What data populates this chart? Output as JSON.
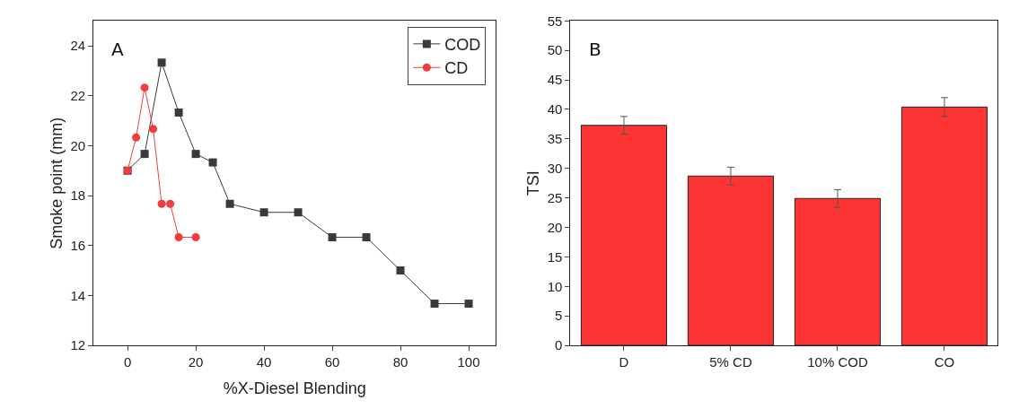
{
  "chart_data": [
    {
      "type": "line",
      "xlabel": "%X-Diesel Blending",
      "ylabel": "Smoke point (mm)",
      "annotations": [
        "A"
      ],
      "xlim": [
        -10,
        108
      ],
      "xticks": [
        0,
        20,
        40,
        60,
        80,
        100
      ],
      "ylim": [
        12,
        25
      ],
      "yticks": [
        12,
        14,
        16,
        18,
        20,
        22,
        24
      ],
      "legend": "top right",
      "series": [
        {
          "name": "COD",
          "color": "#3a3a3a",
          "marker": "square",
          "x": [
            0,
            5,
            10,
            15,
            20,
            25,
            30,
            40,
            50,
            60,
            70,
            80,
            90,
            100
          ],
          "values": [
            19,
            19.67,
            23.33,
            21.33,
            19.67,
            19.33,
            17.67,
            17.33,
            17.33,
            16.33,
            16.33,
            15,
            13.67,
            13.67
          ]
        },
        {
          "name": "CD",
          "color": "#f03c3c",
          "marker": "circle",
          "x": [
            0,
            2.5,
            5,
            7.5,
            10,
            12.5,
            15,
            20
          ],
          "values": [
            19,
            20.33,
            22.33,
            20.67,
            17.67,
            17.67,
            16.33,
            16.33
          ]
        }
      ]
    },
    {
      "type": "bar",
      "ylabel": "TSI",
      "annotations": [
        "B"
      ],
      "categories": [
        "D",
        "5% CD",
        "10% COD",
        "CO"
      ],
      "values": [
        37.3,
        28.7,
        24.9,
        40.4
      ],
      "errors": [
        1.5,
        1.5,
        1.5,
        1.6
      ],
      "color": "#fc3434",
      "ylim": [
        0,
        55
      ],
      "yticks": [
        0,
        5,
        10,
        15,
        20,
        25,
        30,
        35,
        40,
        45,
        50,
        55
      ]
    }
  ]
}
